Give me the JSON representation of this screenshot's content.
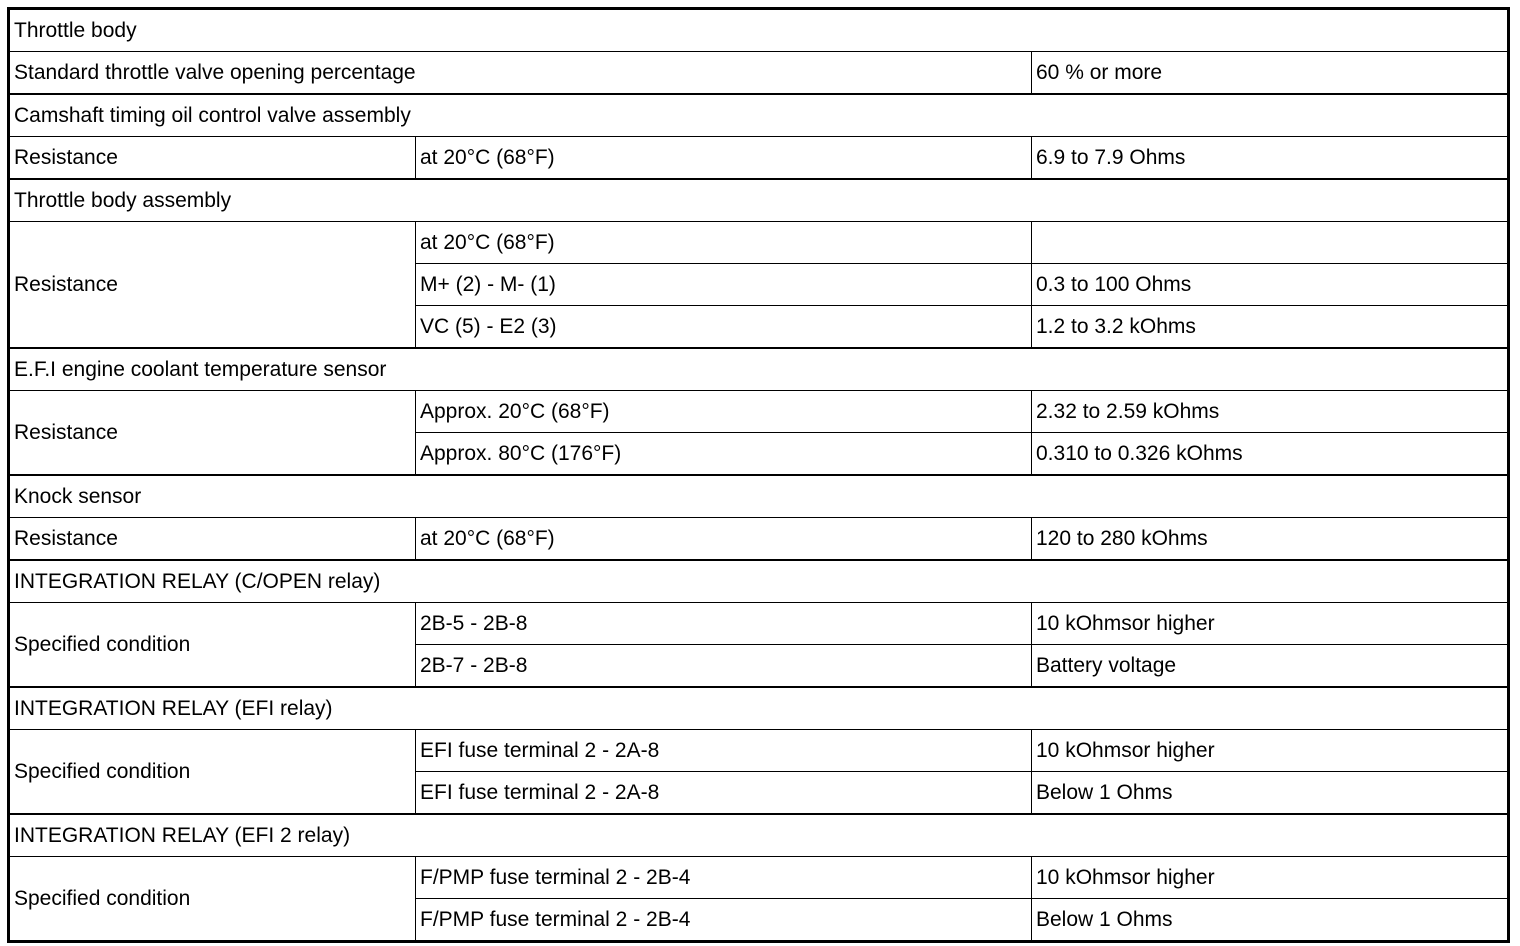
{
  "throttle_body": {
    "title": "Throttle body",
    "label": "Standard throttle valve opening percentage",
    "value": "60 % or more"
  },
  "oil_control_valve": {
    "title": "Camshaft timing oil control valve assembly",
    "label": "Resistance",
    "rows": [
      {
        "condition": "at 20°C (68°F)",
        "value": "6.9 to 7.9 Ohms"
      }
    ]
  },
  "throttle_body_assembly": {
    "title": "Throttle body assembly",
    "label": "Resistance",
    "rows": [
      {
        "condition": "at 20°C (68°F)",
        "value": ""
      },
      {
        "condition": "M+ (2) - M- (1)",
        "value": "0.3 to 100 Ohms"
      },
      {
        "condition": "VC (5) - E2 (3)",
        "value": "1.2 to 3.2 kOhms"
      }
    ]
  },
  "coolant_sensor": {
    "title": "E.F.I engine coolant temperature sensor",
    "label": "Resistance",
    "rows": [
      {
        "condition": "Approx. 20°C (68°F)",
        "value": "2.32 to 2.59 kOhms"
      },
      {
        "condition": "Approx. 80°C (176°F)",
        "value": "0.310 to 0.326 kOhms"
      }
    ]
  },
  "knock_sensor": {
    "title": "Knock sensor",
    "label": "Resistance",
    "rows": [
      {
        "condition": "at 20°C (68°F)",
        "value": "120 to 280 kOhms"
      }
    ]
  },
  "relay_c_open": {
    "title": "INTEGRATION RELAY (C/OPEN relay)",
    "label": "Specified condition",
    "rows": [
      {
        "condition": "2B-5 - 2B-8",
        "value": "10 kOhmsor higher"
      },
      {
        "condition": "2B-7 - 2B-8",
        "value": "Battery voltage"
      }
    ]
  },
  "relay_efi": {
    "title": "INTEGRATION RELAY (EFI relay)",
    "label": "Specified condition",
    "rows": [
      {
        "condition": "EFI fuse terminal 2 - 2A-8",
        "value": "10 kOhmsor higher"
      },
      {
        "condition": "EFI fuse terminal 2 - 2A-8",
        "value": "Below 1 Ohms"
      }
    ]
  },
  "relay_efi2": {
    "title": "INTEGRATION RELAY (EFI 2 relay)",
    "label": "Specified condition",
    "rows": [
      {
        "condition": "F/PMP fuse terminal 2 - 2B-4",
        "value": "10 kOhmsor higher"
      },
      {
        "condition": "F/PMP fuse terminal 2 - 2B-4",
        "value": "Below 1 Ohms"
      }
    ]
  }
}
